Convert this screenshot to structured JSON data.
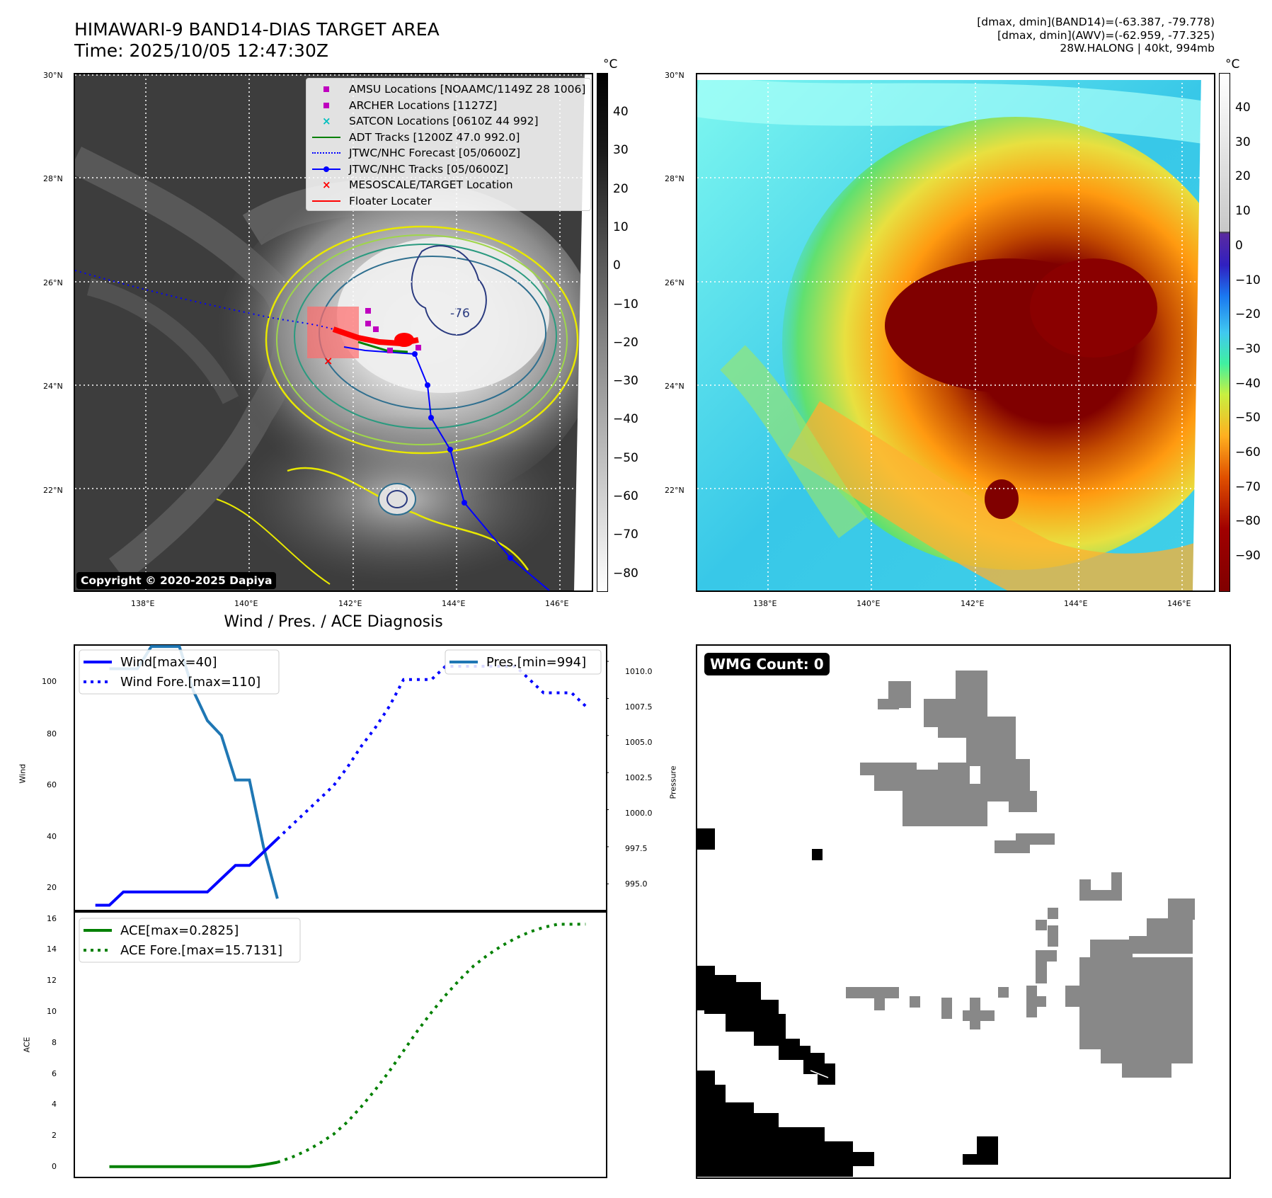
{
  "header": {
    "title_line1": "HIMAWARI-9 BAND14-DIAS TARGET AREA",
    "title_line2": "Time: 2025/10/05 12:47:30Z",
    "info_line1": "[dmax, dmin](BAND14)=(-63.387, -79.778)",
    "info_line2": "[dmax, dmin](AWV)=(-62.959, -77.325)",
    "info_line3": "28W.HALONG | 40kt, 994mb"
  },
  "map": {
    "lat_labels": [
      "30°N",
      "28°N",
      "26°N",
      "24°N",
      "22°N"
    ],
    "lon_labels": [
      "138°E",
      "140°E",
      "142°E",
      "144°E",
      "146°E"
    ],
    "contour_label": "-76",
    "copyright": "Copyright © 2020-2025 Dapiya",
    "legend": [
      {
        "label": "AMSU Locations [NOAAMC/1149Z 28 1006]",
        "style": "marker-square",
        "color": "#bf00bf"
      },
      {
        "label": "ARCHER Locations [1127Z]",
        "style": "marker-square",
        "color": "#bf00bf"
      },
      {
        "label": "SATCON Locations [0610Z 44 992]",
        "style": "marker-x",
        "color": "#00bfbf"
      },
      {
        "label": "ADT Tracks [1200Z 47.0 992.0]",
        "style": "line-solid",
        "color": "#008000"
      },
      {
        "label": "JTWC/NHC Forecast [05/0600Z]",
        "style": "line-dotted",
        "color": "#0000ff"
      },
      {
        "label": "JTWC/NHC Tracks [05/0600Z]",
        "style": "line-dot-marker",
        "color": "#0000ff"
      },
      {
        "label": "MESOSCALE/TARGET Location",
        "style": "marker-x",
        "color": "#ff0000"
      },
      {
        "label": "Floater Locater",
        "style": "line-solid",
        "color": "#ff0000"
      }
    ]
  },
  "colorbar_left": {
    "unit": "°C",
    "ticks": [
      "40",
      "30",
      "20",
      "10",
      "0",
      "−10",
      "−20",
      "−30",
      "−40",
      "−50",
      "−60",
      "−70",
      "−80"
    ]
  },
  "colorbar_right": {
    "unit": "°C",
    "ticks": [
      "40",
      "30",
      "20",
      "10",
      "0",
      "−10",
      "−20",
      "−30",
      "−40",
      "−50",
      "−60",
      "−70",
      "−80",
      "−90"
    ]
  },
  "diagnosis": {
    "title": "Wind / Pres. / ACE Diagnosis",
    "wind_ylabel": "Wind",
    "pres_ylabel": "Pressure",
    "ace_ylabel": "ACE",
    "wind_ticks": [
      "100",
      "80",
      "60",
      "40",
      "20"
    ],
    "pres_ticks": [
      "1010.0",
      "1007.5",
      "1005.0",
      "1002.5",
      "1000.0",
      "997.5",
      "995.0"
    ],
    "ace_ticks": [
      "16",
      "14",
      "12",
      "10",
      "8",
      "6",
      "4",
      "2",
      "0"
    ],
    "legend_wind": "Wind[max=40]",
    "legend_wind_fore": "Wind Fore.[max=110]",
    "legend_pres": "Pres.[min=994]",
    "legend_ace": "ACE[max=0.2825]",
    "legend_ace_fore": "ACE Fore.[max=15.7131]"
  },
  "wmg": {
    "label": "WMG Count: 0"
  },
  "chart_data": [
    {
      "type": "line",
      "title": "Wind / Pres. / ACE Diagnosis",
      "ylabel": "Wind",
      "ylim": [
        13,
        113
      ],
      "series": [
        {
          "name": "Wind[max=40]",
          "x": [
            0,
            1,
            2,
            3,
            4,
            5,
            6,
            7,
            8,
            9,
            10,
            11,
            12,
            13
          ],
          "values": [
            15,
            15,
            20,
            20,
            20,
            20,
            20,
            20,
            20,
            25,
            30,
            30,
            35,
            40
          ],
          "color": "#0000ff",
          "style": "solid"
        },
        {
          "name": "Wind Fore.[max=110]",
          "x": [
            13,
            14,
            15,
            16,
            17,
            18,
            19,
            20,
            21,
            22,
            23,
            24,
            25,
            26,
            27,
            28,
            29,
            30,
            31,
            32,
            33,
            34,
            35
          ],
          "values": [
            40,
            45,
            50,
            55,
            60,
            67,
            75,
            82,
            90,
            100,
            100,
            100,
            105,
            105,
            105,
            105,
            105,
            105,
            100,
            95,
            95,
            95,
            90
          ],
          "color": "#0000ff",
          "style": "dotted"
        }
      ]
    },
    {
      "type": "line",
      "ylabel": "Pressure",
      "ylim": [
        993.2,
        1011.1
      ],
      "series": [
        {
          "name": "Pres.[min=994]",
          "x": [
            1,
            2,
            3,
            4,
            5,
            6,
            7,
            8,
            9,
            10,
            11,
            12,
            13
          ],
          "values": [
            1009.5,
            1009.5,
            1009.5,
            1011,
            1011,
            1011,
            1008,
            1006,
            1005,
            1002,
            1002,
            997.5,
            994
          ],
          "color": "#1f77b4",
          "style": "solid"
        }
      ]
    },
    {
      "type": "line",
      "ylabel": "ACE",
      "ylim": [
        -0.7,
        16.5
      ],
      "series": [
        {
          "name": "ACE[max=0.2825]",
          "x": [
            1,
            2,
            3,
            4,
            5,
            6,
            7,
            8,
            9,
            10,
            11,
            12,
            13
          ],
          "values": [
            0,
            0,
            0,
            0,
            0,
            0,
            0,
            0,
            0,
            0,
            0,
            0.12,
            0.28
          ],
          "color": "#008000",
          "style": "solid"
        },
        {
          "name": "ACE Fore.[max=15.7131]",
          "x": [
            13,
            14,
            15,
            16,
            17,
            18,
            19,
            20,
            21,
            22,
            23,
            24,
            25,
            26,
            27,
            28,
            29,
            30,
            31,
            32,
            33,
            34,
            35
          ],
          "values": [
            0.28,
            0.6,
            1.0,
            1.5,
            2.1,
            2.9,
            3.9,
            5.0,
            6.2,
            7.5,
            8.8,
            10.0,
            11.1,
            12.1,
            13.0,
            13.7,
            14.3,
            14.8,
            15.2,
            15.5,
            15.7,
            15.7,
            15.71
          ],
          "color": "#008000",
          "style": "dotted"
        }
      ]
    }
  ]
}
